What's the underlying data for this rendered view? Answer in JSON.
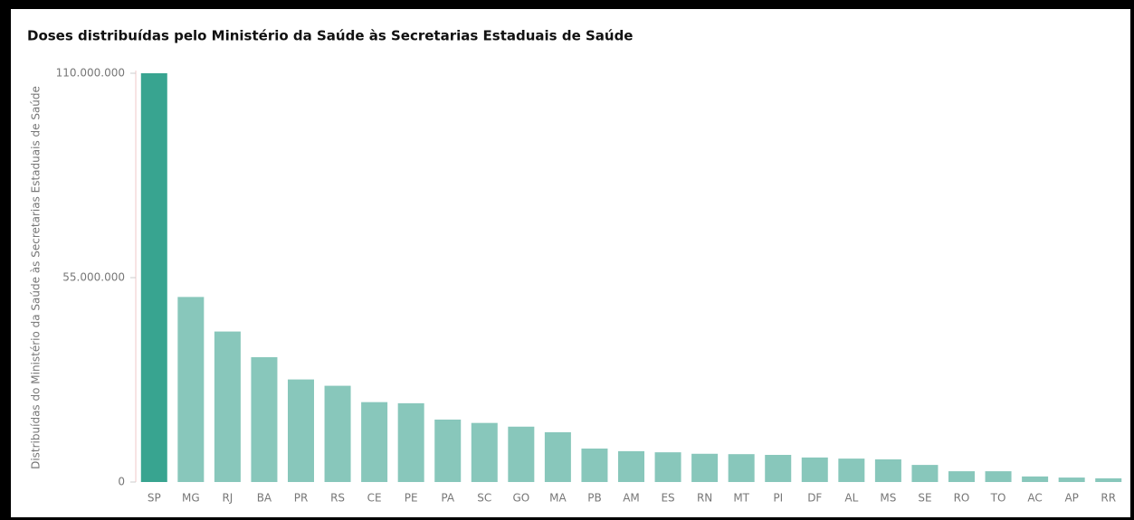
{
  "chart_data": {
    "type": "bar",
    "title": "Doses distribuídas pelo Ministério da Saúde às Secretarias Estaduais de Saúde",
    "y_label": "Distribuídas do Ministério da Saúde às Secretarias Estaduais de Saúde",
    "categories": [
      "SP",
      "MG",
      "RJ",
      "BA",
      "PR",
      "RS",
      "CE",
      "PE",
      "PA",
      "SC",
      "GO",
      "MA",
      "PB",
      "AM",
      "ES",
      "RN",
      "MT",
      "PI",
      "DF",
      "AL",
      "MS",
      "SE",
      "RO",
      "TO",
      "AC",
      "AP",
      "RR"
    ],
    "values": [
      110000000,
      49800000,
      40500000,
      33600000,
      27600000,
      25900000,
      21500000,
      21200000,
      16800000,
      15900000,
      14900000,
      13400000,
      9000000,
      8300000,
      8000000,
      7600000,
      7500000,
      7300000,
      6600000,
      6300000,
      6100000,
      4600000,
      2900000,
      2900000,
      1500000,
      1200000,
      1000000
    ],
    "colors": [
      "#38a490",
      "#88c7bb",
      "#88c7bb",
      "#88c7bb",
      "#88c7bb",
      "#88c7bb",
      "#88c7bb",
      "#88c7bb",
      "#88c7bb",
      "#88c7bb",
      "#88c7bb",
      "#88c7bb",
      "#88c7bb",
      "#88c7bb",
      "#88c7bb",
      "#88c7bb",
      "#88c7bb",
      "#88c7bb",
      "#88c7bb",
      "#88c7bb",
      "#88c7bb",
      "#88c7bb",
      "#88c7bb",
      "#88c7bb",
      "#88c7bb",
      "#88c7bb",
      "#88c7bb"
    ],
    "ylim": [
      0,
      110000000
    ],
    "yticks": [
      0,
      {
        "value": 55000000,
        "label": "55.000.000"
      },
      {
        "value": 110000000,
        "label": "110.000.000"
      }
    ]
  }
}
